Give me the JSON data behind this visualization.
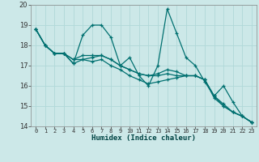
{
  "xlabel": "Humidex (Indice chaleur)",
  "xlim": [
    -0.5,
    23.5
  ],
  "ylim": [
    14,
    20
  ],
  "yticks": [
    14,
    15,
    16,
    17,
    18,
    19,
    20
  ],
  "xticks": [
    0,
    1,
    2,
    3,
    4,
    5,
    6,
    7,
    8,
    9,
    10,
    11,
    12,
    13,
    14,
    15,
    16,
    17,
    18,
    19,
    20,
    21,
    22,
    23
  ],
  "background_color": "#cce8e8",
  "grid_color": "#b0d8d8",
  "line_color": "#007070",
  "series": [
    [
      18.8,
      18.0,
      17.6,
      17.6,
      17.1,
      18.5,
      19.0,
      19.0,
      18.4,
      17.0,
      17.4,
      16.5,
      16.0,
      17.0,
      19.8,
      18.6,
      17.4,
      17.0,
      16.2,
      15.5,
      16.0,
      15.2,
      14.5,
      14.2
    ],
    [
      18.8,
      18.0,
      17.6,
      17.6,
      17.1,
      17.3,
      17.2,
      17.3,
      17.0,
      16.8,
      16.5,
      16.3,
      16.1,
      16.2,
      16.3,
      16.4,
      16.5,
      16.5,
      16.3,
      15.4,
      15.0,
      14.7,
      14.5,
      14.2
    ],
    [
      18.8,
      18.0,
      17.6,
      17.6,
      17.3,
      17.3,
      17.4,
      17.5,
      17.3,
      17.0,
      16.8,
      16.6,
      16.5,
      16.5,
      16.6,
      16.5,
      16.5,
      16.5,
      16.3,
      15.5,
      15.0,
      14.7,
      14.5,
      14.2
    ],
    [
      18.8,
      18.0,
      17.6,
      17.6,
      17.3,
      17.5,
      17.5,
      17.5,
      17.3,
      17.0,
      16.8,
      16.6,
      16.5,
      16.6,
      16.8,
      16.7,
      16.5,
      16.5,
      16.3,
      15.5,
      15.1,
      14.7,
      14.5,
      14.2
    ]
  ]
}
